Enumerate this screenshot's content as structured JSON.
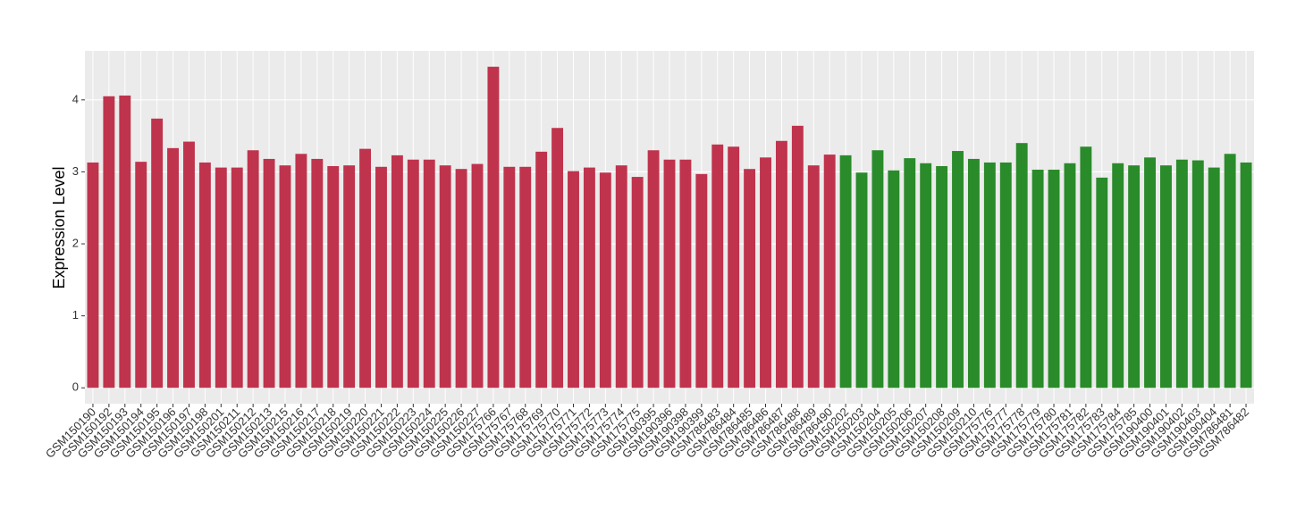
{
  "chart_data": {
    "type": "bar",
    "y_label": "Expression Level",
    "categories": [
      "GSM150190",
      "GSM150192",
      "GSM150193",
      "GSM150194",
      "GSM150195",
      "GSM150196",
      "GSM150197",
      "GSM150198",
      "GSM150201",
      "GSM150211",
      "GSM150212",
      "GSM150213",
      "GSM150215",
      "GSM150216",
      "GSM150217",
      "GSM150218",
      "GSM150219",
      "GSM150220",
      "GSM150221",
      "GSM150222",
      "GSM150223",
      "GSM150224",
      "GSM150225",
      "GSM150226",
      "GSM150227",
      "GSM175766",
      "GSM175767",
      "GSM175768",
      "GSM175769",
      "GSM175770",
      "GSM175771",
      "GSM175772",
      "GSM175773",
      "GSM175774",
      "GSM175775",
      "GSM190395",
      "GSM190396",
      "GSM190398",
      "GSM190399",
      "GSM786483",
      "GSM786484",
      "GSM786485",
      "GSM786486",
      "GSM786487",
      "GSM786488",
      "GSM786489",
      "GSM786490",
      "GSM150202",
      "GSM150203",
      "GSM150204",
      "GSM150205",
      "GSM150206",
      "GSM150207",
      "GSM150208",
      "GSM150209",
      "GSM150210",
      "GSM175776",
      "GSM175777",
      "GSM175778",
      "GSM175779",
      "GSM175780",
      "GSM175781",
      "GSM175782",
      "GSM175783",
      "GSM175784",
      "GSM175785",
      "GSM190400",
      "GSM190401",
      "GSM190402",
      "GSM190403",
      "GSM190404",
      "GSM786481",
      "GSM786482"
    ],
    "values": [
      3.13,
      4.05,
      4.06,
      3.14,
      3.74,
      3.33,
      3.42,
      3.13,
      3.06,
      3.06,
      3.3,
      3.18,
      3.09,
      3.25,
      3.18,
      3.08,
      3.09,
      3.32,
      3.07,
      3.23,
      3.17,
      3.17,
      3.09,
      3.04,
      3.11,
      4.46,
      3.07,
      3.07,
      3.28,
      3.61,
      3.01,
      3.06,
      2.99,
      3.09,
      2.93,
      3.3,
      3.17,
      3.17,
      2.97,
      3.38,
      3.35,
      3.04,
      3.2,
      3.43,
      3.64,
      3.09,
      3.24,
      3.23,
      2.99,
      3.3,
      3.02,
      3.19,
      3.12,
      3.08,
      3.29,
      3.18,
      3.13,
      3.13,
      3.4,
      3.03,
      3.03,
      3.12,
      3.35,
      2.92,
      3.12,
      3.09,
      3.2,
      3.09,
      3.17,
      3.16,
      3.06,
      3.25,
      3.13
    ],
    "colors": [
      "#c0334d",
      "#c0334d",
      "#c0334d",
      "#c0334d",
      "#c0334d",
      "#c0334d",
      "#c0334d",
      "#c0334d",
      "#c0334d",
      "#c0334d",
      "#c0334d",
      "#c0334d",
      "#c0334d",
      "#c0334d",
      "#c0334d",
      "#c0334d",
      "#c0334d",
      "#c0334d",
      "#c0334d",
      "#c0334d",
      "#c0334d",
      "#c0334d",
      "#c0334d",
      "#c0334d",
      "#c0334d",
      "#c0334d",
      "#c0334d",
      "#c0334d",
      "#c0334d",
      "#c0334d",
      "#c0334d",
      "#c0334d",
      "#c0334d",
      "#c0334d",
      "#c0334d",
      "#c0334d",
      "#c0334d",
      "#c0334d",
      "#c0334d",
      "#c0334d",
      "#c0334d",
      "#c0334d",
      "#c0334d",
      "#c0334d",
      "#c0334d",
      "#c0334d",
      "#c0334d",
      "#2a8b2a",
      "#2a8b2a",
      "#2a8b2a",
      "#2a8b2a",
      "#2a8b2a",
      "#2a8b2a",
      "#2a8b2a",
      "#2a8b2a",
      "#2a8b2a",
      "#2a8b2a",
      "#2a8b2a",
      "#2a8b2a",
      "#2a8b2a",
      "#2a8b2a",
      "#2a8b2a",
      "#2a8b2a",
      "#2a8b2a",
      "#2a8b2a",
      "#2a8b2a",
      "#2a8b2a",
      "#2a8b2a",
      "#2a8b2a",
      "#2a8b2a",
      "#2a8b2a",
      "#2a8b2a",
      "#2a8b2a"
    ],
    "ylim": [
      -0.22,
      4.68
    ],
    "yticks": [
      0,
      1,
      2,
      3,
      4
    ],
    "grid": true
  }
}
